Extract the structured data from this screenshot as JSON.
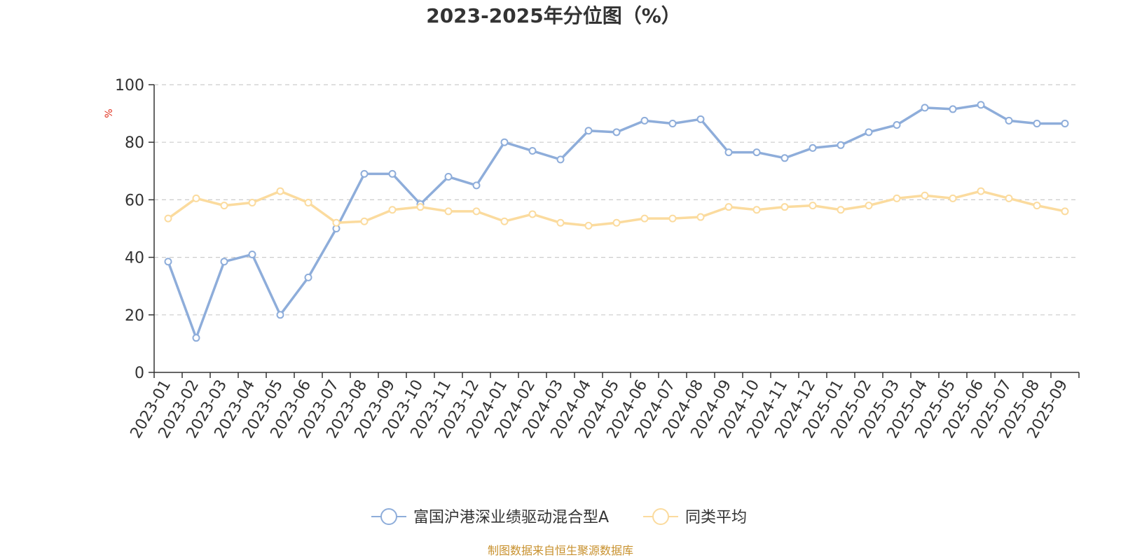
{
  "chart_data": {
    "type": "line",
    "title": "2023-2025年分位图（%）",
    "ylabel": "%",
    "xlabel": "",
    "ylim": [
      0,
      100
    ],
    "yticks": [
      0,
      20,
      40,
      60,
      80,
      100
    ],
    "grid": "horizontal dashed",
    "legend_position": "bottom-center",
    "categories": [
      "2023-01",
      "2023-02",
      "2023-03",
      "2023-04",
      "2023-05",
      "2023-06",
      "2023-07",
      "2023-08",
      "2023-09",
      "2023-10",
      "2023-11",
      "2023-12",
      "2024-01",
      "2024-02",
      "2024-03",
      "2024-04",
      "2024-05",
      "2024-06",
      "2024-07",
      "2024-08",
      "2024-09",
      "2024-10",
      "2024-11",
      "2024-12",
      "2025-01",
      "2025-02",
      "2025-03",
      "2025-04",
      "2025-05",
      "2025-06",
      "2025-07",
      "2025-08",
      "2025-09"
    ],
    "series": [
      {
        "name": "富国沪港深业绩驱动混合型A",
        "color": "#8EADDA",
        "values": [
          38.5,
          12,
          38.5,
          41,
          20,
          33,
          50,
          69,
          69,
          58.5,
          68,
          65,
          80,
          77,
          74,
          84,
          83.5,
          87.5,
          86.5,
          88,
          76.5,
          76.5,
          74.5,
          78,
          79,
          83.5,
          86,
          92,
          91.5,
          93,
          87.5,
          86.5,
          86.5
        ]
      },
      {
        "name": "同类平均",
        "color": "#FBDB9E",
        "values": [
          53.5,
          60.5,
          58,
          59,
          63,
          59,
          52,
          52.5,
          56.5,
          57.5,
          56,
          56,
          52.5,
          55,
          52,
          51,
          52,
          53.5,
          53.5,
          54,
          57.5,
          56.5,
          57.5,
          58,
          56.5,
          58,
          60.5,
          61.5,
          60.5,
          63,
          60.5,
          58,
          56
        ]
      }
    ]
  },
  "source": "制图数据来自恒生聚源数据库",
  "colors": {
    "axis": "#333333",
    "grid": "#CCCCCC",
    "ylabel": "#E0301E",
    "source": "#C8912E"
  }
}
